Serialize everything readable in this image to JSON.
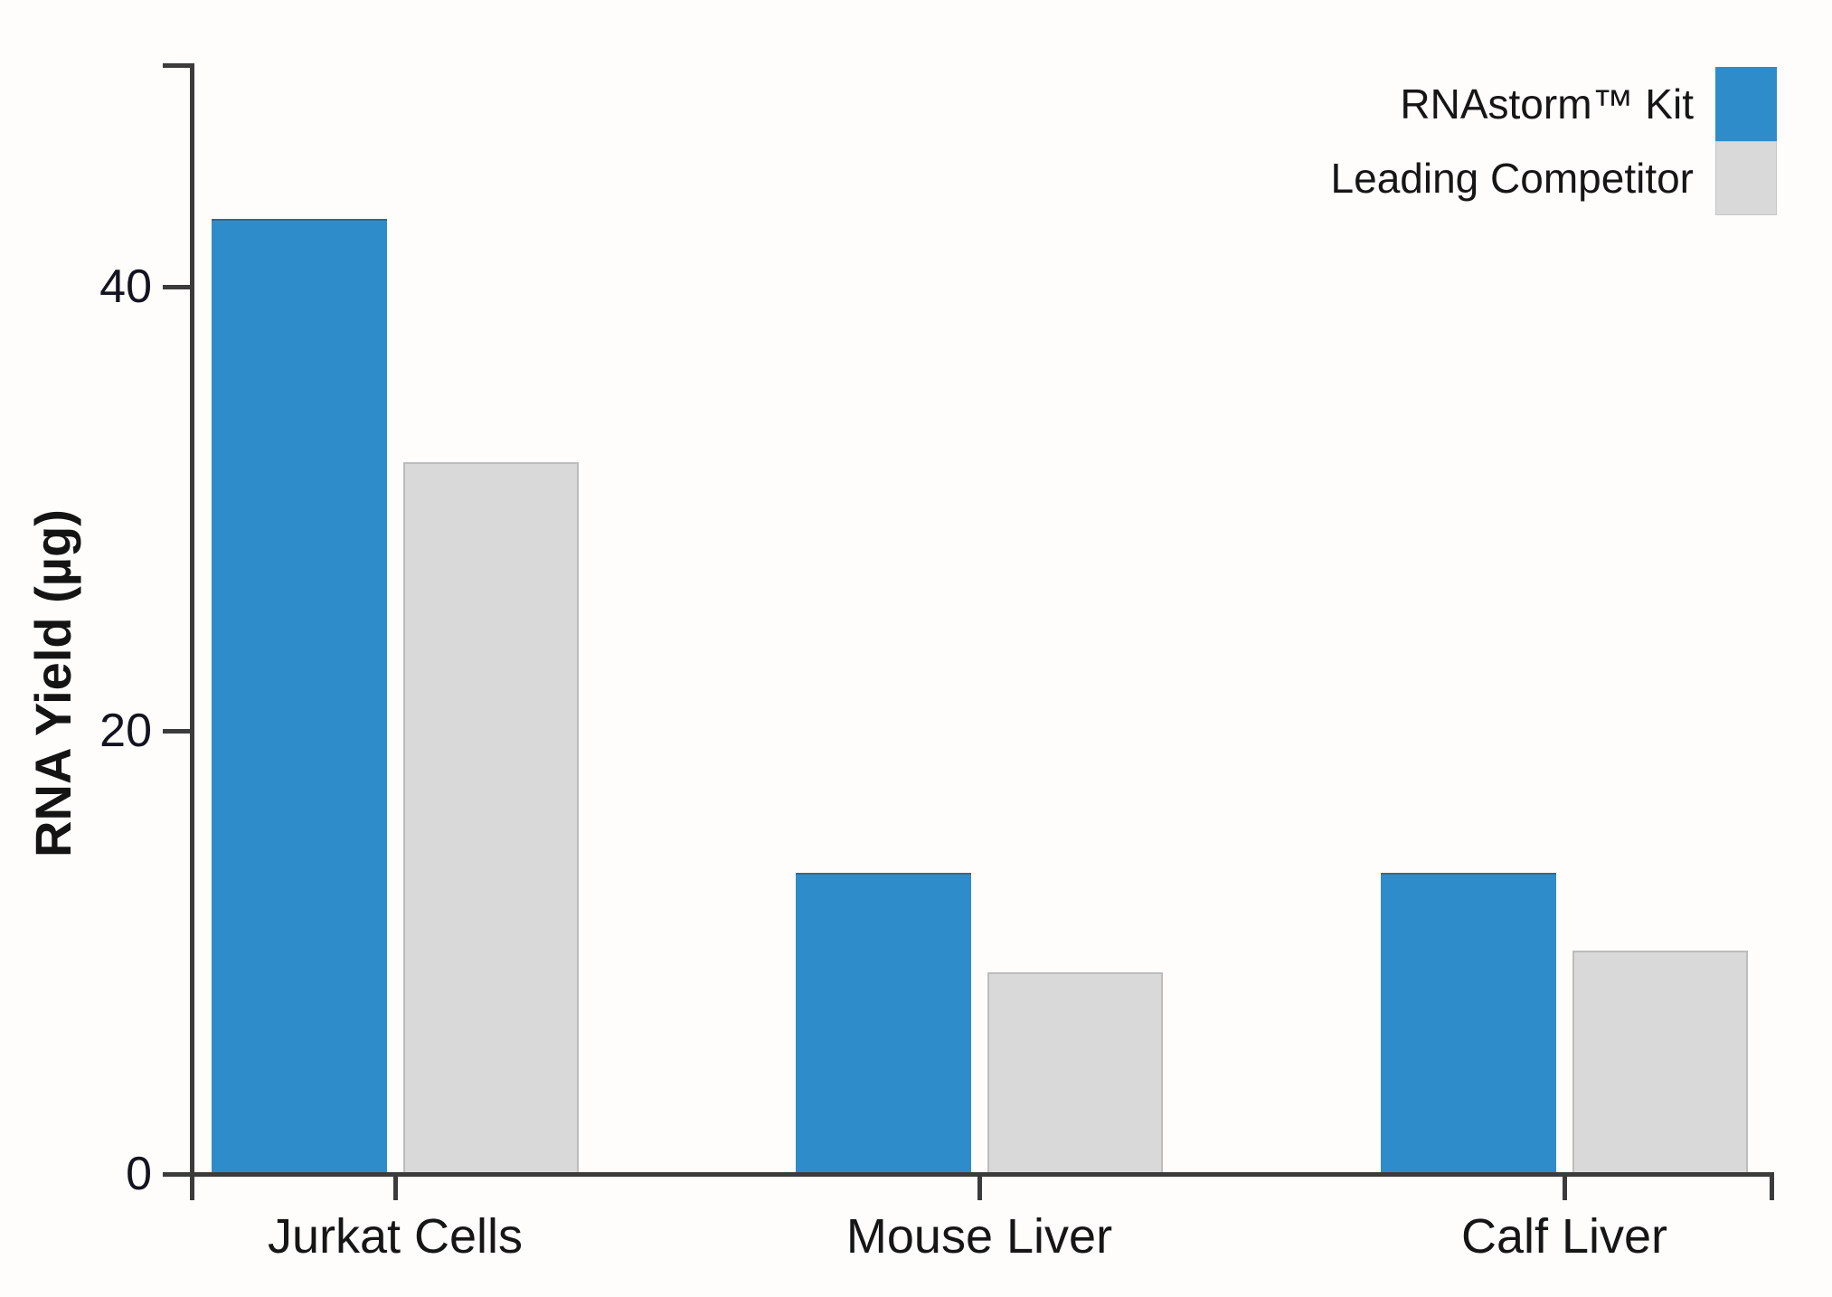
{
  "chart_data": {
    "type": "bar",
    "title": "",
    "categories": [
      "Jurkat Cells",
      "Mouse Liver",
      "Calf Liver"
    ],
    "series": [
      {
        "name": "RNAstorm™ Kit",
        "color": "#2e8cca",
        "border_color": "#4a7fa0",
        "values": [
          43,
          13.5,
          13.5
        ]
      },
      {
        "name": "Leading Competitor",
        "color": "#d9d9d9",
        "border_color": "#bcbcbc",
        "values": [
          32,
          9,
          10
        ]
      }
    ],
    "xlabel": "",
    "ylabel": "RNA Yield (µg)",
    "yticks": [
      "0",
      "20",
      "40"
    ],
    "ytick_values": [
      0,
      20,
      40
    ],
    "ylim": [
      0,
      50
    ],
    "grid": false,
    "legend_position": "top-right",
    "axis_color": "#3b3b3b",
    "background_color": "#fefdfb"
  }
}
